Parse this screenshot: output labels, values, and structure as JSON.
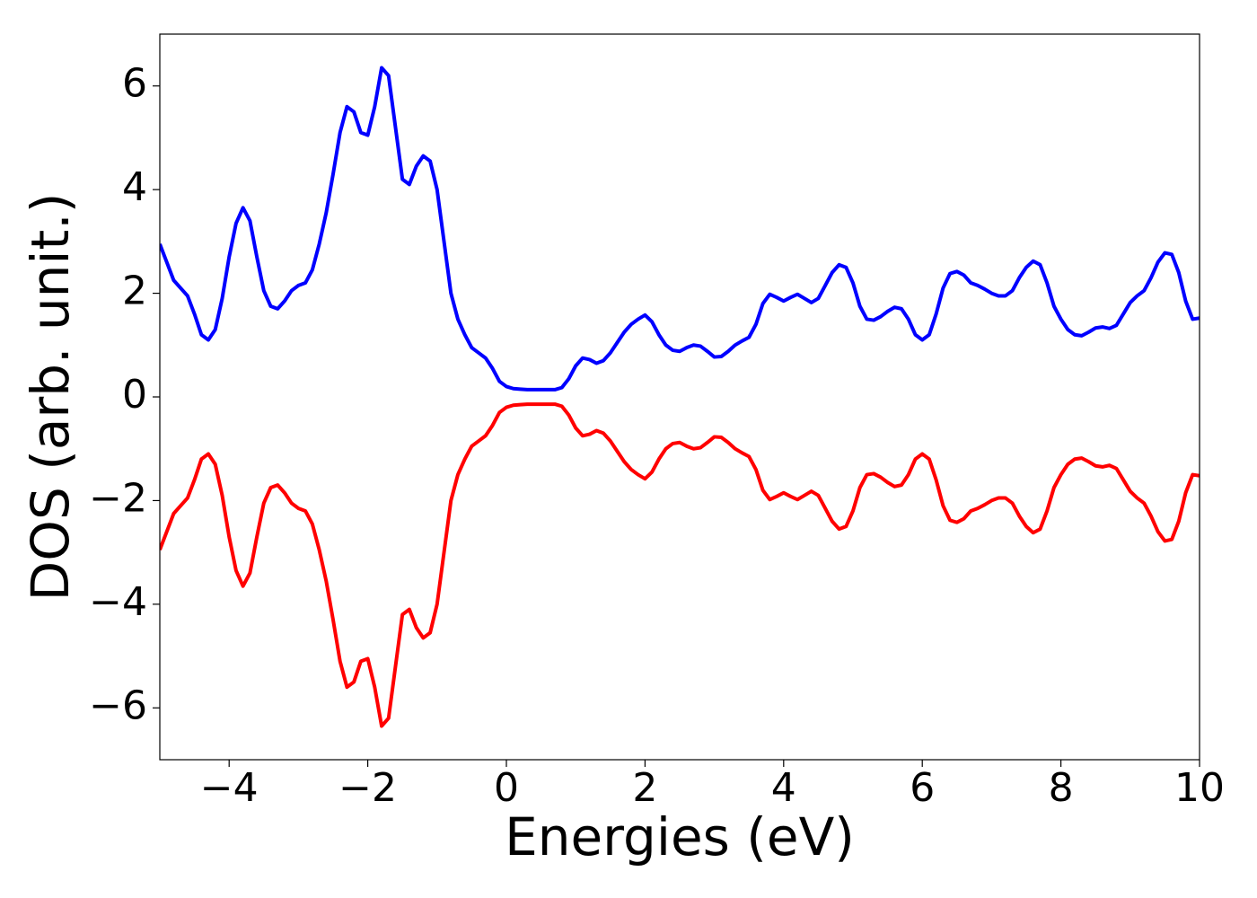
{
  "chart_data": {
    "type": "line",
    "xlabel": "Energies (eV)",
    "ylabel": "DOS (arb. unit.)",
    "x": [
      -5.0,
      -4.9,
      -4.8,
      -4.7,
      -4.6,
      -4.5,
      -4.4,
      -4.3,
      -4.2,
      -4.1,
      -4.0,
      -3.9,
      -3.8,
      -3.7,
      -3.6,
      -3.5,
      -3.4,
      -3.3,
      -3.2,
      -3.1,
      -3.0,
      -2.9,
      -2.8,
      -2.7,
      -2.6,
      -2.5,
      -2.4,
      -2.3,
      -2.2,
      -2.1,
      -2.0,
      -1.9,
      -1.8,
      -1.7,
      -1.6,
      -1.5,
      -1.4,
      -1.3,
      -1.2,
      -1.1,
      -1.0,
      -0.9,
      -0.8,
      -0.7,
      -0.6,
      -0.5,
      -0.4,
      -0.3,
      -0.2,
      -0.1,
      0.0,
      0.1,
      0.2,
      0.3,
      0.4,
      0.5,
      0.6,
      0.7,
      0.8,
      0.9,
      1.0,
      1.1,
      1.2,
      1.3,
      1.4,
      1.5,
      1.6,
      1.7,
      1.8,
      1.9,
      2.0,
      2.1,
      2.2,
      2.3,
      2.4,
      2.5,
      2.6,
      2.7,
      2.8,
      2.9,
      3.0,
      3.1,
      3.2,
      3.3,
      3.4,
      3.5,
      3.6,
      3.7,
      3.8,
      3.9,
      4.0,
      4.1,
      4.2,
      4.3,
      4.4,
      4.5,
      4.6,
      4.7,
      4.8,
      4.9,
      5.0,
      5.1,
      5.2,
      5.3,
      5.4,
      5.5,
      5.6,
      5.7,
      5.8,
      5.9,
      6.0,
      6.1,
      6.2,
      6.3,
      6.4,
      6.5,
      6.6,
      6.7,
      6.8,
      6.9,
      7.0,
      7.1,
      7.2,
      7.3,
      7.4,
      7.5,
      7.6,
      7.7,
      7.8,
      7.9,
      8.0,
      8.1,
      8.2,
      8.3,
      8.4,
      8.5,
      8.6,
      8.7,
      8.8,
      8.9,
      9.0,
      9.1,
      9.2,
      9.3,
      9.4,
      9.5,
      9.6,
      9.7,
      9.8,
      9.9,
      10.0
    ],
    "series": [
      {
        "color": "#0000ff",
        "values": [
          2.95,
          2.6,
          2.25,
          2.1,
          1.95,
          1.6,
          1.2,
          1.1,
          1.3,
          1.9,
          2.7,
          3.35,
          3.65,
          3.4,
          2.7,
          2.05,
          1.75,
          1.7,
          1.85,
          2.05,
          2.15,
          2.2,
          2.45,
          2.95,
          3.55,
          4.3,
          5.1,
          5.6,
          5.5,
          5.1,
          5.05,
          5.6,
          6.35,
          6.2,
          5.2,
          4.2,
          4.1,
          4.45,
          4.65,
          4.55,
          4.0,
          3.0,
          2.0,
          1.5,
          1.2,
          0.95,
          0.85,
          0.75,
          0.55,
          0.3,
          0.2,
          0.16,
          0.15,
          0.14,
          0.14,
          0.14,
          0.14,
          0.14,
          0.18,
          0.35,
          0.6,
          0.75,
          0.72,
          0.65,
          0.7,
          0.85,
          1.05,
          1.25,
          1.4,
          1.5,
          1.58,
          1.45,
          1.2,
          1.0,
          0.9,
          0.88,
          0.95,
          1.0,
          0.98,
          0.88,
          0.77,
          0.78,
          0.88,
          1.0,
          1.08,
          1.15,
          1.4,
          1.8,
          1.98,
          1.92,
          1.85,
          1.92,
          1.98,
          1.9,
          1.82,
          1.9,
          2.15,
          2.4,
          2.55,
          2.5,
          2.2,
          1.75,
          1.5,
          1.48,
          1.55,
          1.65,
          1.73,
          1.7,
          1.5,
          1.2,
          1.1,
          1.2,
          1.6,
          2.1,
          2.38,
          2.42,
          2.35,
          2.2,
          2.15,
          2.08,
          2.0,
          1.95,
          1.95,
          2.05,
          2.3,
          2.5,
          2.62,
          2.55,
          2.2,
          1.75,
          1.5,
          1.3,
          1.2,
          1.18,
          1.25,
          1.33,
          1.35,
          1.32,
          1.38,
          1.6,
          1.82,
          1.95,
          2.05,
          2.3,
          2.6,
          2.78,
          2.75,
          2.4,
          1.85,
          1.5,
          1.52
        ]
      },
      {
        "color": "#ff0000",
        "values": [
          -2.95,
          -2.6,
          -2.25,
          -2.1,
          -1.95,
          -1.6,
          -1.2,
          -1.1,
          -1.3,
          -1.9,
          -2.7,
          -3.35,
          -3.65,
          -3.4,
          -2.7,
          -2.05,
          -1.75,
          -1.7,
          -1.85,
          -2.05,
          -2.15,
          -2.2,
          -2.45,
          -2.95,
          -3.55,
          -4.3,
          -5.1,
          -5.6,
          -5.5,
          -5.1,
          -5.05,
          -5.6,
          -6.35,
          -6.2,
          -5.2,
          -4.2,
          -4.1,
          -4.45,
          -4.65,
          -4.55,
          -4.0,
          -3.0,
          -2.0,
          -1.5,
          -1.2,
          -0.95,
          -0.85,
          -0.75,
          -0.55,
          -0.3,
          -0.2,
          -0.16,
          -0.15,
          -0.14,
          -0.14,
          -0.14,
          -0.14,
          -0.14,
          -0.18,
          -0.35,
          -0.6,
          -0.75,
          -0.72,
          -0.65,
          -0.7,
          -0.85,
          -1.05,
          -1.25,
          -1.4,
          -1.5,
          -1.58,
          -1.45,
          -1.2,
          -1.0,
          -0.9,
          -0.88,
          -0.95,
          -1.0,
          -0.98,
          -0.88,
          -0.77,
          -0.78,
          -0.88,
          -1.0,
          -1.08,
          -1.15,
          -1.4,
          -1.8,
          -1.98,
          -1.92,
          -1.85,
          -1.92,
          -1.98,
          -1.9,
          -1.82,
          -1.9,
          -2.15,
          -2.4,
          -2.55,
          -2.5,
          -2.2,
          -1.75,
          -1.5,
          -1.48,
          -1.55,
          -1.65,
          -1.73,
          -1.7,
          -1.5,
          -1.2,
          -1.1,
          -1.2,
          -1.6,
          -2.1,
          -2.38,
          -2.42,
          -2.35,
          -2.2,
          -2.15,
          -2.08,
          -2.0,
          -1.95,
          -1.95,
          -2.05,
          -2.3,
          -2.5,
          -2.62,
          -2.55,
          -2.2,
          -1.75,
          -1.5,
          -1.3,
          -1.2,
          -1.18,
          -1.25,
          -1.33,
          -1.35,
          -1.32,
          -1.38,
          -1.6,
          -1.82,
          -1.95,
          -2.05,
          -2.3,
          -2.6,
          -2.78,
          -2.75,
          -2.4,
          -1.85,
          -1.5,
          -1.52
        ]
      }
    ],
    "xlim": [
      -5,
      10
    ],
    "xticks": [
      {
        "value": -4,
        "label": "−4"
      },
      {
        "value": -2,
        "label": "−2"
      },
      0,
      2,
      4,
      6,
      8,
      10
    ],
    "ylim": [
      -7,
      7
    ],
    "yticks": [
      {
        "value": -6,
        "label": "−6"
      },
      {
        "value": -4,
        "label": "−4"
      },
      {
        "value": -2,
        "label": "−2"
      },
      0,
      2,
      4,
      6
    ]
  }
}
